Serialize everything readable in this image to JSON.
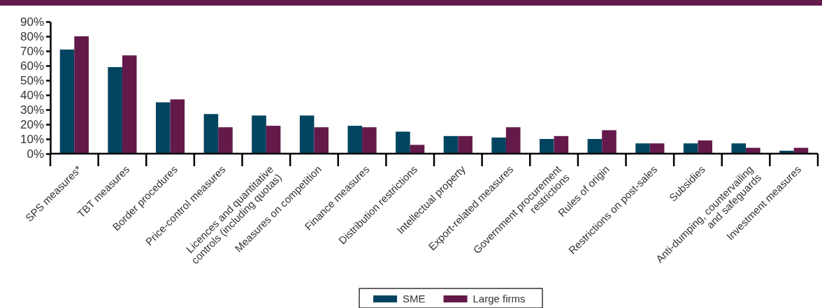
{
  "chart_data": {
    "type": "bar",
    "categories": [
      "SPS measures*",
      "TBT measures",
      "Border procedures",
      "Price-control measures",
      "Licences and quantitative\ncontrols (including quotas)",
      "Measures on competition",
      "Finance measures",
      "Distribution restrictions",
      "Intellectual property",
      "Export-related measures",
      "Government procurement\nrestrictions",
      "Rules of origin",
      "Restrictions on post-sales",
      "Subsidies",
      "Anti-dumping, countervailing\nand safeguards",
      "Investment measures"
    ],
    "series": [
      {
        "name": "SME",
        "color": "#00445f",
        "values": [
          71,
          59,
          35,
          27,
          26,
          26,
          19,
          15,
          12,
          11,
          10,
          10,
          7,
          7,
          7,
          2
        ]
      },
      {
        "name": "Large firms",
        "color": "#631a4a",
        "values": [
          80,
          67,
          37,
          18,
          19,
          18,
          18,
          6,
          12,
          18,
          12,
          16,
          7,
          9,
          4,
          4
        ]
      }
    ],
    "ylim": [
      0,
      90
    ],
    "yticks": [
      {
        "value": 0,
        "label": "0%"
      },
      {
        "value": 10,
        "label": "10%"
      },
      {
        "value": 20,
        "label": "20%"
      },
      {
        "value": 30,
        "label": "30%"
      },
      {
        "value": 40,
        "label": "40%"
      },
      {
        "value": 50,
        "label": "50%"
      },
      {
        "value": 60,
        "label": "60%"
      },
      {
        "value": 70,
        "label": "70%"
      },
      {
        "value": 80,
        "label": "80%"
      },
      {
        "value": 90,
        "label": "90%"
      }
    ],
    "grid": false,
    "legend": "bottom"
  }
}
